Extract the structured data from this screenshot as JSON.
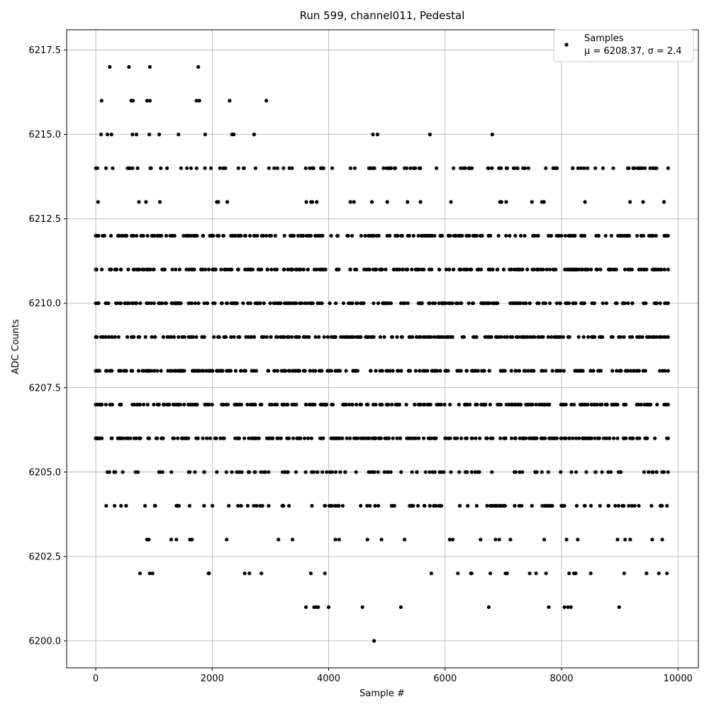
{
  "chart_data": {
    "type": "scatter",
    "title": "Run 599, channel011, Pedestal",
    "xlabel": "Sample #",
    "ylabel": "ADC Counts",
    "xlim": [
      -500,
      10350
    ],
    "ylim": [
      6199.2,
      6218.1
    ],
    "xticks": [
      0,
      2000,
      4000,
      6000,
      8000,
      10000
    ],
    "yticks": [
      6200.0,
      6202.5,
      6205.0,
      6207.5,
      6210.0,
      6212.5,
      6215.0,
      6217.5
    ],
    "grid": true,
    "legend_position": "top-right",
    "marker_color": "#000000",
    "series": [
      {
        "name": "Samples",
        "stats_label": "μ = 6208.37, σ = 2.4",
        "x_range": [
          0,
          9830
        ],
        "levels": [
          {
            "y": 6217,
            "density": "sparse",
            "x": [
              240,
              570,
              930,
              1760
            ]
          },
          {
            "y": 6216,
            "density": "sparse",
            "x": [
              100,
              610,
              640,
              880,
              930,
              1730,
              1780,
              2300,
              2930
            ]
          },
          {
            "y": 6215,
            "density": "sparse",
            "x": [
              90,
              200,
              270,
              630,
              700,
              920,
              1090,
              1420,
              1880,
              2340,
              2370,
              2720,
              4760,
              4840,
              5740,
              6810
            ]
          },
          {
            "y": 6214,
            "density": "medium",
            "x_range": [
              0,
              9830
            ]
          },
          {
            "y": 6213,
            "density": "sparse",
            "x_range": [
              40,
              9760
            ]
          },
          {
            "y": 6212,
            "density": "dense",
            "x_range": [
              0,
              9830
            ]
          },
          {
            "y": 6211,
            "density": "dense",
            "x_range": [
              0,
              9830
            ]
          },
          {
            "y": 6210,
            "density": "dense",
            "x_range": [
              0,
              9830
            ]
          },
          {
            "y": 6209,
            "density": "dense",
            "x_range": [
              0,
              9830
            ]
          },
          {
            "y": 6208,
            "density": "dense",
            "x_range": [
              0,
              9830
            ]
          },
          {
            "y": 6207,
            "density": "dense",
            "x_range": [
              0,
              9830
            ]
          },
          {
            "y": 6206,
            "density": "dense",
            "x_range": [
              0,
              9830
            ]
          },
          {
            "y": 6205,
            "density": "medium",
            "x_range": [
              200,
              9830
            ]
          },
          {
            "y": 6204,
            "density": "medium",
            "x_range": [
              180,
              9810
            ]
          },
          {
            "y": 6203,
            "density": "sparse",
            "x_range": [
              880,
              9730
            ]
          },
          {
            "y": 6202,
            "density": "sparse",
            "x_range": [
              760,
              9810
            ]
          },
          {
            "y": 6201,
            "density": "sparse",
            "x": [
              3610,
              3750,
              3790,
              3820,
              4000,
              4580,
              5240,
              6750,
              7780,
              8050,
              8110,
              8160,
              8990
            ]
          },
          {
            "y": 6200,
            "density": "sparse",
            "x": [
              4780
            ]
          }
        ]
      }
    ]
  }
}
